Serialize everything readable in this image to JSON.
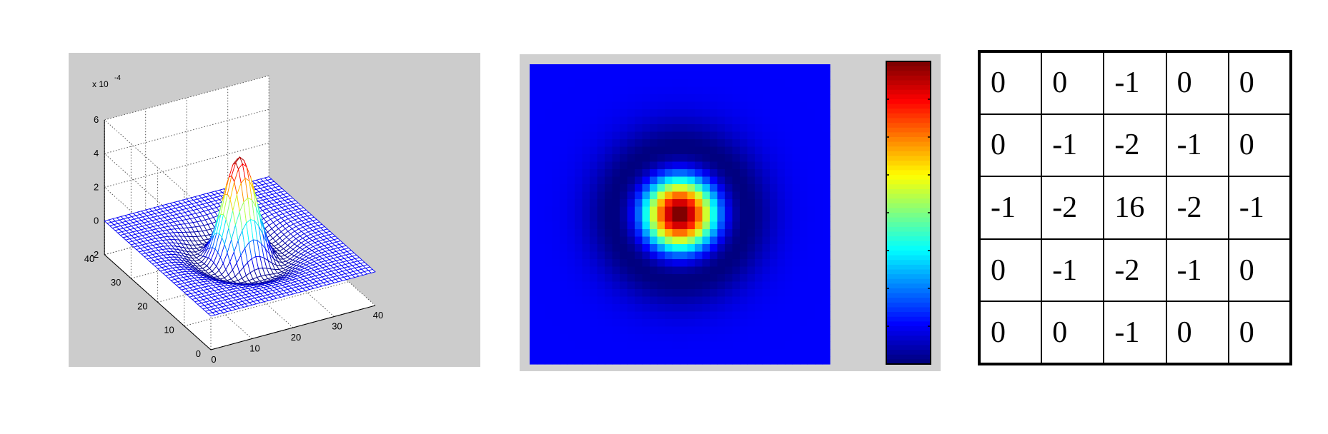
{
  "chart_data": [
    {
      "type": "surface",
      "title": "",
      "z_multiplier": "x 10",
      "z_exponent": "-4",
      "zlim": [
        -2,
        6
      ],
      "z_ticks": [
        "6",
        "4",
        "2",
        "0",
        "-2"
      ],
      "x_ticks": [
        "0",
        "10",
        "20",
        "30",
        "40"
      ],
      "y_ticks": [
        "0",
        "10",
        "20",
        "30",
        "40"
      ],
      "xlim": [
        0,
        40
      ],
      "ylim": [
        0,
        40
      ],
      "grid": true,
      "grid_size": 40,
      "peak_value": 5.3,
      "description_function": "negative Laplacian of Gaussian (Mexican hat), peak at center (20,20), shallow negative ring"
    },
    {
      "type": "heatmap",
      "colormap": "jet",
      "grid_size": 40,
      "center": [
        20,
        20
      ],
      "colorbar": true,
      "colorbar_ticks": 7
    },
    {
      "type": "table",
      "rows": [
        [
          "0",
          "0",
          "-1",
          "0",
          "0"
        ],
        [
          "0",
          "-1",
          "-2",
          "-1",
          "0"
        ],
        [
          "-1",
          "-2",
          "16",
          "-2",
          "-1"
        ],
        [
          "0",
          "-1",
          "-2",
          "-1",
          "0"
        ],
        [
          "0",
          "0",
          "-1",
          "0",
          "0"
        ]
      ]
    }
  ]
}
